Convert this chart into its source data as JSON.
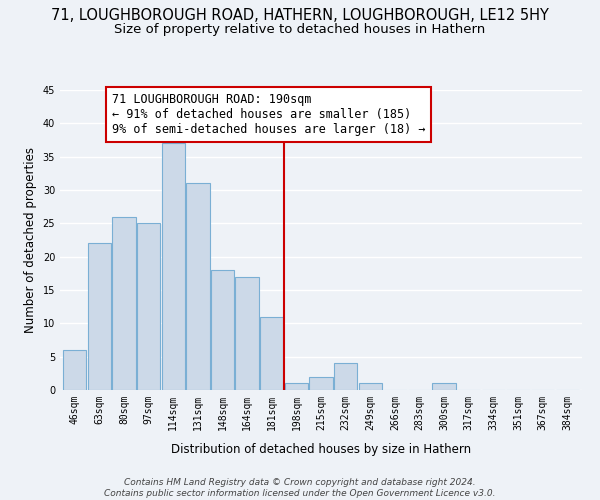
{
  "title": "71, LOUGHBOROUGH ROAD, HATHERN, LOUGHBOROUGH, LE12 5HY",
  "subtitle": "Size of property relative to detached houses in Hathern",
  "xlabel": "Distribution of detached houses by size in Hathern",
  "ylabel": "Number of detached properties",
  "bin_labels": [
    "46sqm",
    "63sqm",
    "80sqm",
    "97sqm",
    "114sqm",
    "131sqm",
    "148sqm",
    "164sqm",
    "181sqm",
    "198sqm",
    "215sqm",
    "232sqm",
    "249sqm",
    "266sqm",
    "283sqm",
    "300sqm",
    "317sqm",
    "334sqm",
    "351sqm",
    "367sqm",
    "384sqm"
  ],
  "bar_heights": [
    6,
    22,
    26,
    25,
    37,
    31,
    18,
    17,
    11,
    1,
    2,
    4,
    1,
    0,
    0,
    1,
    0,
    0,
    0,
    0,
    0
  ],
  "bar_color": "#ccd9e8",
  "bar_edge_color": "#7aafd4",
  "vline_x": 8.5,
  "vline_color": "#cc0000",
  "annotation_text": "71 LOUGHBOROUGH ROAD: 190sqm\n← 91% of detached houses are smaller (185)\n9% of semi-detached houses are larger (18) →",
  "annotation_box_color": "#cc0000",
  "ylim": [
    0,
    45
  ],
  "yticks": [
    0,
    5,
    10,
    15,
    20,
    25,
    30,
    35,
    40,
    45
  ],
  "footer_text": "Contains HM Land Registry data © Crown copyright and database right 2024.\nContains public sector information licensed under the Open Government Licence v3.0.",
  "background_color": "#eef2f7",
  "grid_color": "#ffffff",
  "title_fontsize": 10.5,
  "subtitle_fontsize": 9.5,
  "axis_label_fontsize": 8.5,
  "tick_fontsize": 7,
  "annotation_fontsize": 8.5,
  "footer_fontsize": 6.5
}
